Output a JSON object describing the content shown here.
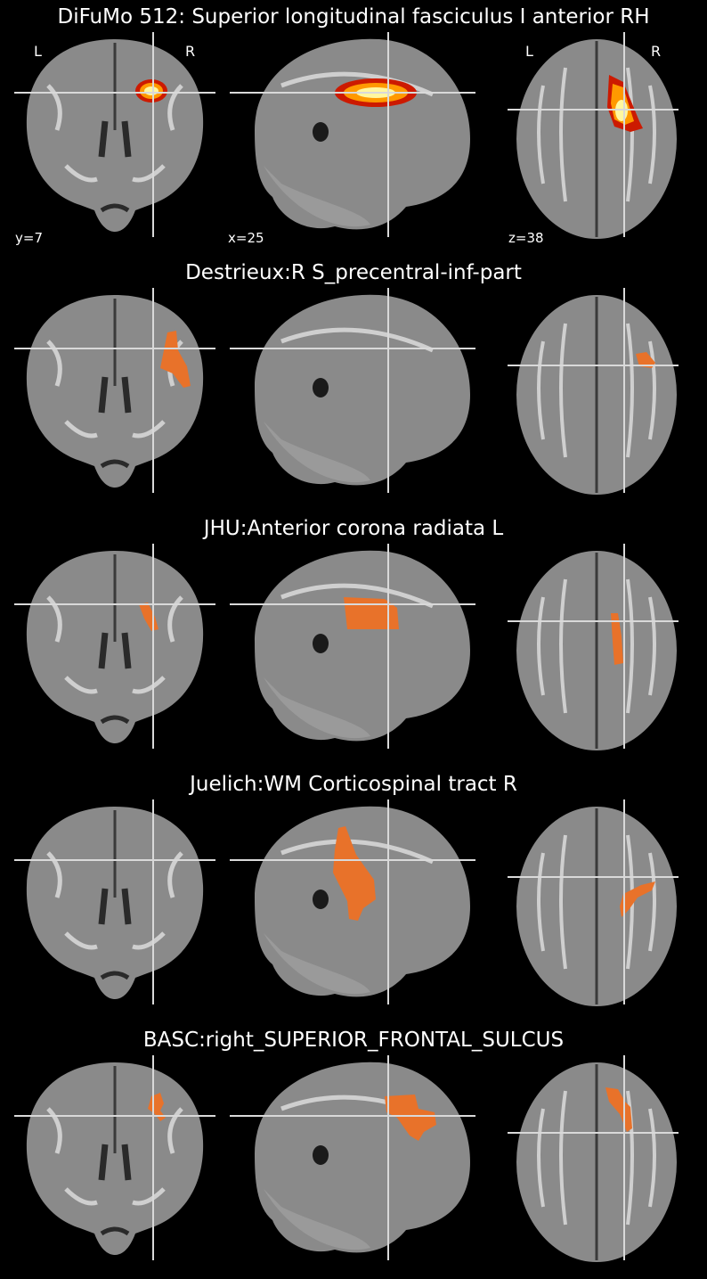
{
  "figure": {
    "panels": [
      {
        "title": "DiFuMo 512: Superior longitudinal fasciculus I anterior RH",
        "overlay": "heat",
        "show_labels": true,
        "coords": {
          "coronal": "y=7",
          "sagittal": "x=25",
          "axial": "z=38"
        },
        "orientation": {
          "left": "L",
          "right": "R"
        }
      },
      {
        "title": "Destrieux:R S_precentral-inf-part",
        "overlay": "orange"
      },
      {
        "title": "JHU:Anterior corona radiata L",
        "overlay": "orange"
      },
      {
        "title": "Juelich:WM Corticospinal tract R",
        "overlay": "orange"
      },
      {
        "title": "BASC:right_SUPERIOR_FRONTAL_SULCUS",
        "overlay": "orange"
      }
    ],
    "colors": {
      "background": "#000000",
      "crosshair": "#d9d9d9",
      "roi": "#e8722a",
      "brain": "#8a8a8a"
    }
  }
}
